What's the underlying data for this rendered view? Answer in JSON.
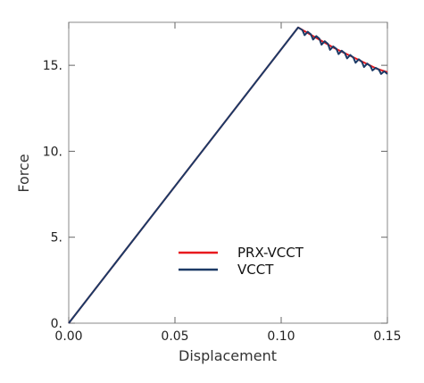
{
  "chart_data": {
    "type": "line",
    "title": "",
    "xlabel": "Displacement",
    "ylabel": "Force",
    "xlim": [
      0,
      0.15
    ],
    "ylim": [
      0,
      17.5
    ],
    "xticks": [
      0,
      0.05,
      0.1,
      0.15
    ],
    "xtick_labels": [
      "0.00",
      "0.05",
      "0.10",
      "0.15"
    ],
    "yticks": [
      0,
      5,
      10,
      15
    ],
    "ytick_labels": [
      "0.",
      "5.",
      "10.",
      "15."
    ],
    "grid": false,
    "legend_position": "lower-right",
    "series": [
      {
        "name": "PRX-VCCT",
        "color": "#e8191e",
        "x": [
          0,
          0.108,
          0.115,
          0.125,
          0.135,
          0.145,
          0.15
        ],
        "y": [
          0,
          17.2,
          16.7,
          16.0,
          15.4,
          14.8,
          14.6
        ]
      },
      {
        "name": "VCCT",
        "color": "#1c3a66",
        "x": [
          0,
          0.108,
          0.11,
          0.111,
          0.1125,
          0.114,
          0.115,
          0.1165,
          0.118,
          0.119,
          0.1205,
          0.122,
          0.123,
          0.1245,
          0.126,
          0.127,
          0.1285,
          0.13,
          0.131,
          0.1325,
          0.134,
          0.135,
          0.1365,
          0.138,
          0.139,
          0.1405,
          0.142,
          0.143,
          0.1445,
          0.146,
          0.147,
          0.1485,
          0.15
        ],
        "y": [
          0,
          17.2,
          17.05,
          16.75,
          16.95,
          16.8,
          16.5,
          16.7,
          16.55,
          16.2,
          16.4,
          16.25,
          15.9,
          16.1,
          15.95,
          15.65,
          15.85,
          15.7,
          15.4,
          15.6,
          15.45,
          15.15,
          15.35,
          15.2,
          14.9,
          15.1,
          14.95,
          14.7,
          14.85,
          14.75,
          14.5,
          14.65,
          14.5
        ]
      }
    ]
  }
}
